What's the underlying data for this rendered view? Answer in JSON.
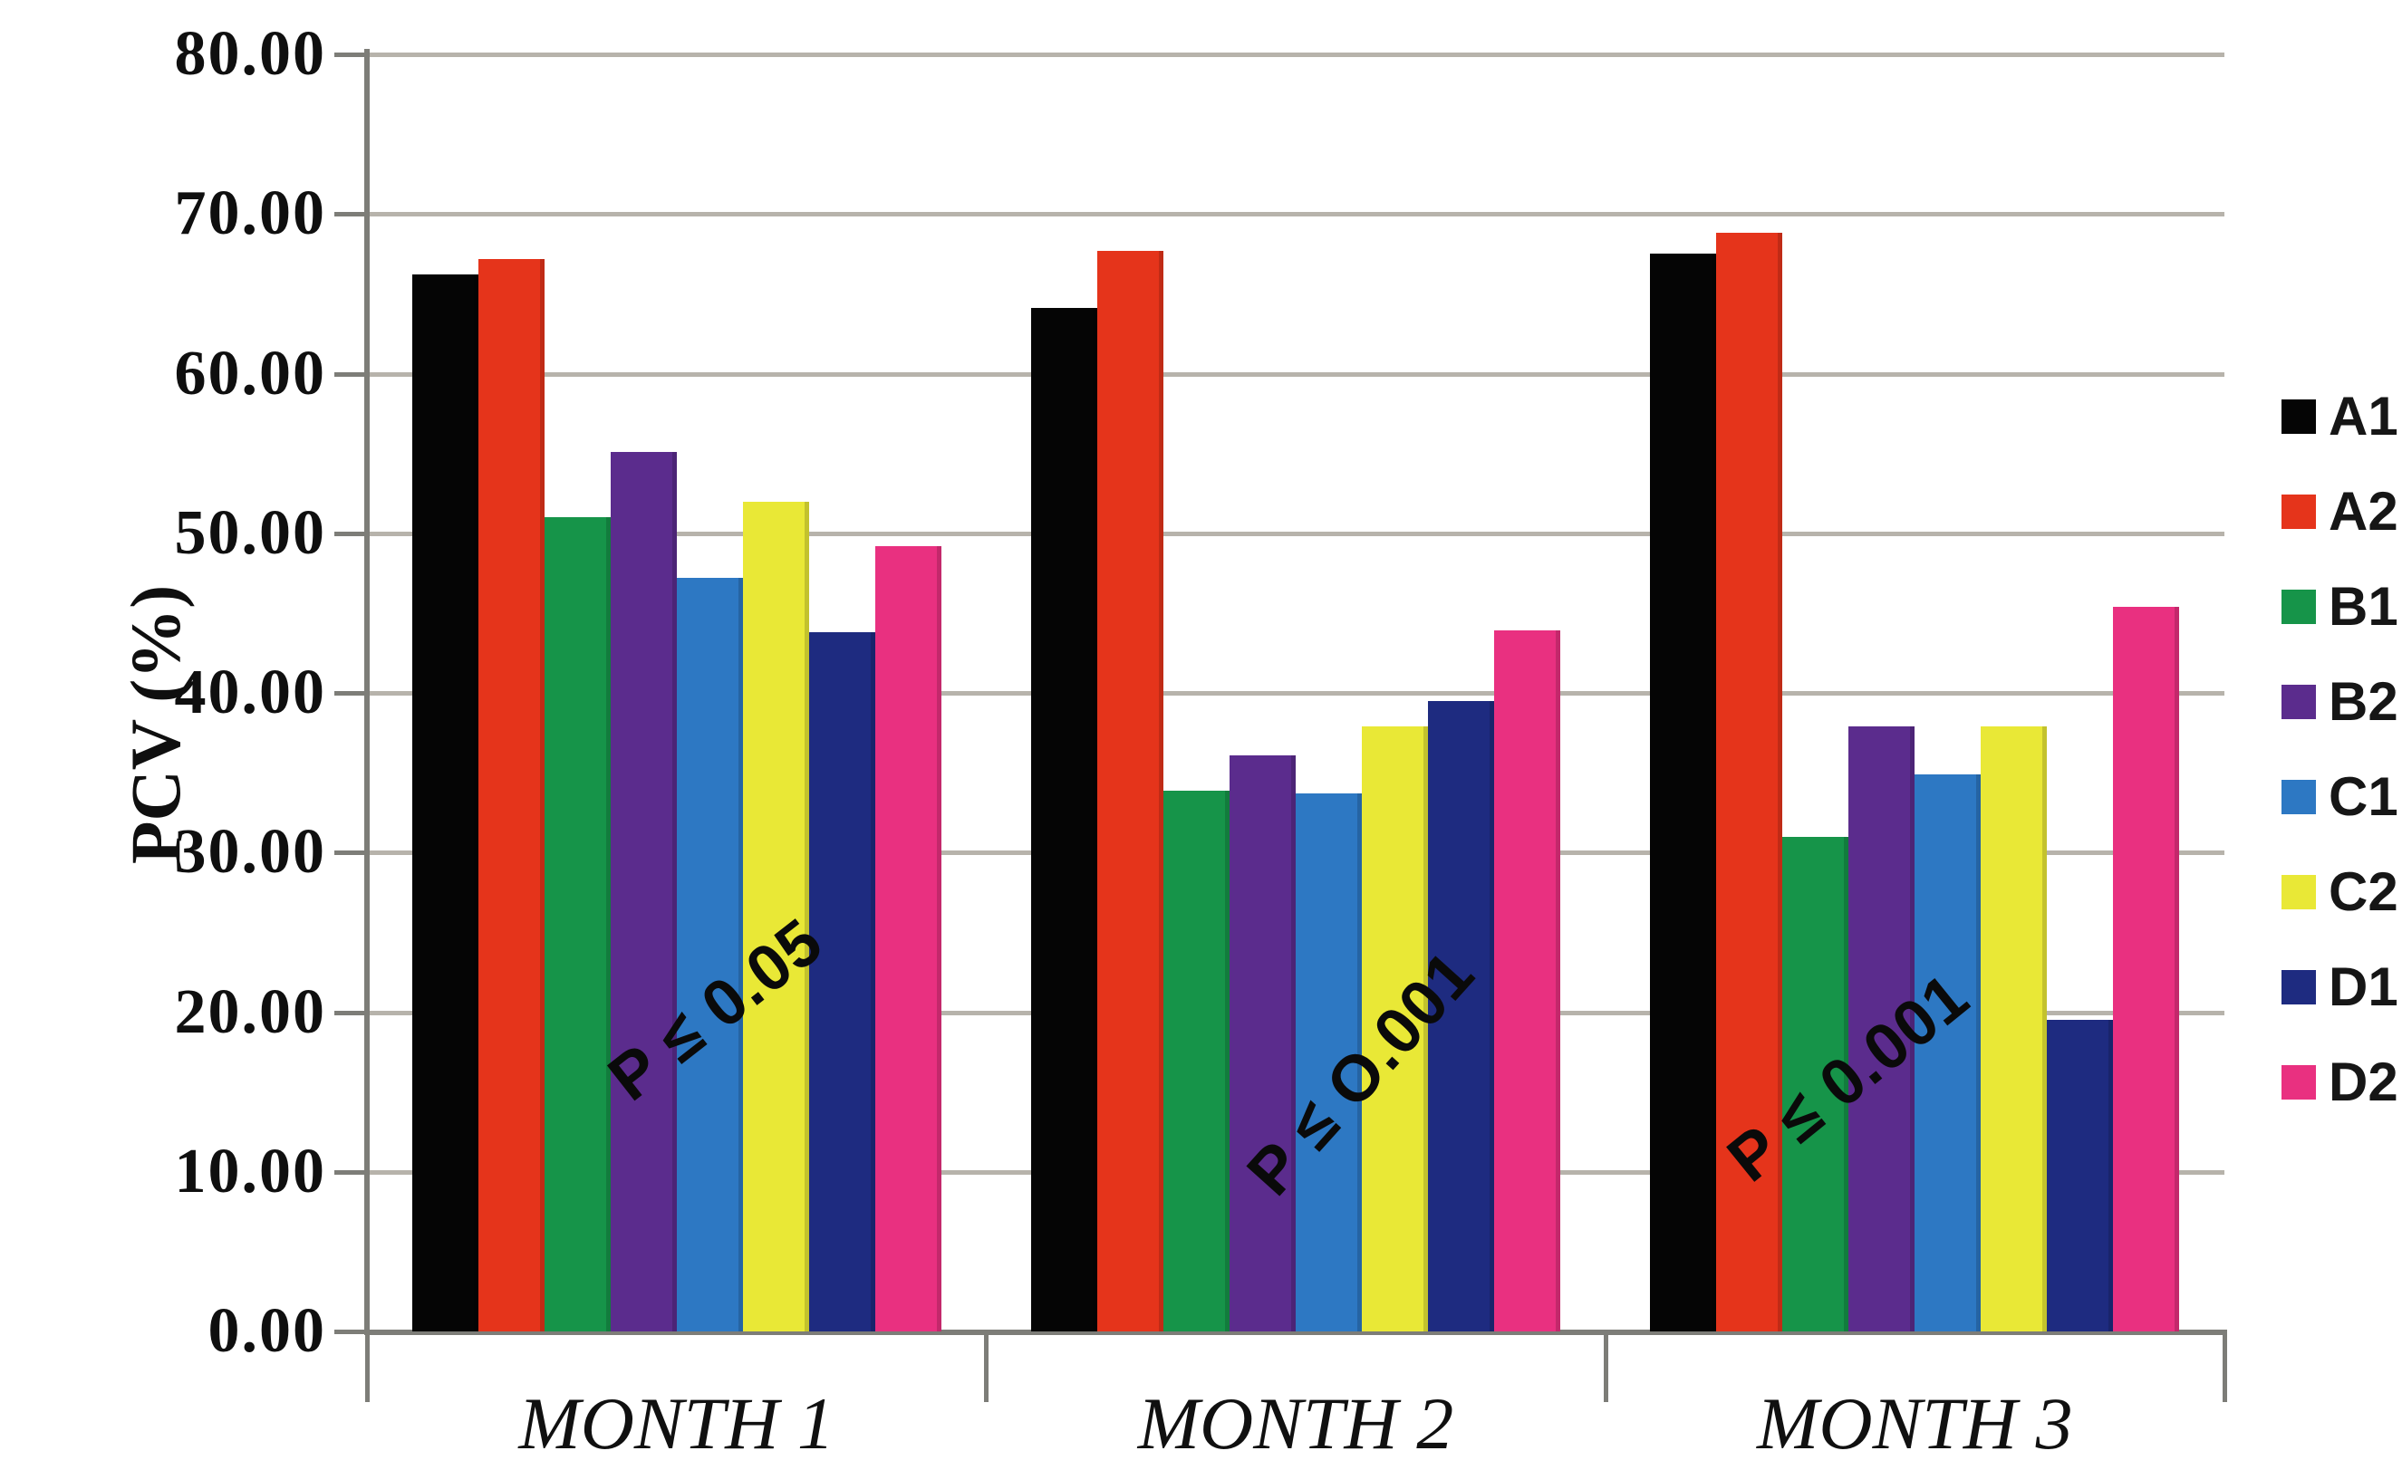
{
  "chart_data": {
    "type": "bar",
    "title": "",
    "ylabel": "PCV (%)",
    "xlabel": "",
    "ylim": [
      0,
      80
    ],
    "grid": true,
    "legend_position": "right",
    "categories": [
      "MONTH 1",
      "MONTH 2",
      "MONTH 3"
    ],
    "yticks": [
      {
        "value": 80,
        "label": "80.00"
      },
      {
        "value": 70,
        "label": "70.00"
      },
      {
        "value": 60,
        "label": "60.00"
      },
      {
        "value": 50,
        "label": "50.00"
      },
      {
        "value": 40,
        "label": "40.00"
      },
      {
        "value": 30,
        "label": "30.00"
      },
      {
        "value": 20,
        "label": "20.00"
      },
      {
        "value": 10,
        "label": "10.00"
      },
      {
        "value": 0,
        "label": "0.00"
      }
    ],
    "series": [
      {
        "name": "A1",
        "color": "#050505",
        "values": [
          66.2,
          64.1,
          67.5
        ]
      },
      {
        "name": "A2",
        "color": "#e5341b",
        "values": [
          67.2,
          67.7,
          68.8
        ]
      },
      {
        "name": "B1",
        "color": "#169449",
        "values": [
          51.0,
          33.9,
          31.0
        ]
      },
      {
        "name": "B2",
        "color": "#5b2c8d",
        "values": [
          55.1,
          36.1,
          37.9
        ]
      },
      {
        "name": "C1",
        "color": "#2d78c3",
        "values": [
          47.2,
          33.7,
          34.9
        ]
      },
      {
        "name": "C2",
        "color": "#e9e836",
        "values": [
          52.0,
          37.9,
          37.9
        ]
      },
      {
        "name": "D1",
        "color": "#1e2b80",
        "values": [
          43.8,
          39.5,
          19.5
        ]
      },
      {
        "name": "D2",
        "color": "#e93080",
        "values": [
          49.2,
          43.9,
          45.4
        ]
      }
    ],
    "annotations": [
      {
        "text": "P ≤ 0.05",
        "x": 790,
        "y": 1115,
        "rotation": -38
      },
      {
        "text": "P ≤ O.001",
        "x": 1502,
        "y": 1185,
        "rotation": -48
      },
      {
        "text": "P ≤ 0.001",
        "x": 2040,
        "y": 1190,
        "rotation": -39
      }
    ]
  },
  "colors": {
    "gridline": "#b7b3ab",
    "axis": "#7d7d78",
    "tick_label": "#0f0f0f",
    "annotation": "#0a0a0a",
    "background": "#ffffff"
  }
}
